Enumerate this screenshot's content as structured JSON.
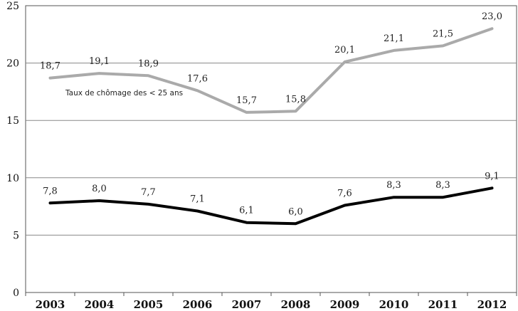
{
  "chart_data": {
    "type": "line",
    "categories": [
      "2003",
      "2004",
      "2005",
      "2006",
      "2007",
      "2008",
      "2009",
      "2010",
      "2011",
      "2012"
    ],
    "y_ticks": [
      "0",
      "5",
      "10",
      "15",
      "20",
      "25"
    ],
    "ylim": [
      0,
      25
    ],
    "grid": true,
    "series": [
      {
        "color": "#aaaaaa",
        "values": [
          18.7,
          19.1,
          18.9,
          17.6,
          15.7,
          15.8,
          20.1,
          21.1,
          21.5,
          23.0
        ],
        "labels": [
          "18,7",
          "19,1",
          "18,9",
          "17,6",
          "15,7",
          "15,8",
          "20,1",
          "21,1",
          "21,5",
          "23,0"
        ]
      },
      {
        "color": "#000000",
        "values": [
          7.8,
          8.0,
          7.7,
          7.1,
          6.1,
          6.0,
          7.6,
          8.3,
          8.3,
          9.1
        ],
        "labels": [
          "7,8",
          "8,0",
          "7,7",
          "7,1",
          "6,1",
          "6,0",
          "7,6",
          "8,3",
          "8,3",
          "9,1"
        ]
      }
    ],
    "annotations": [
      {
        "text": "Taux de chômage des < 25 ans",
        "series_index": 0
      }
    ]
  }
}
